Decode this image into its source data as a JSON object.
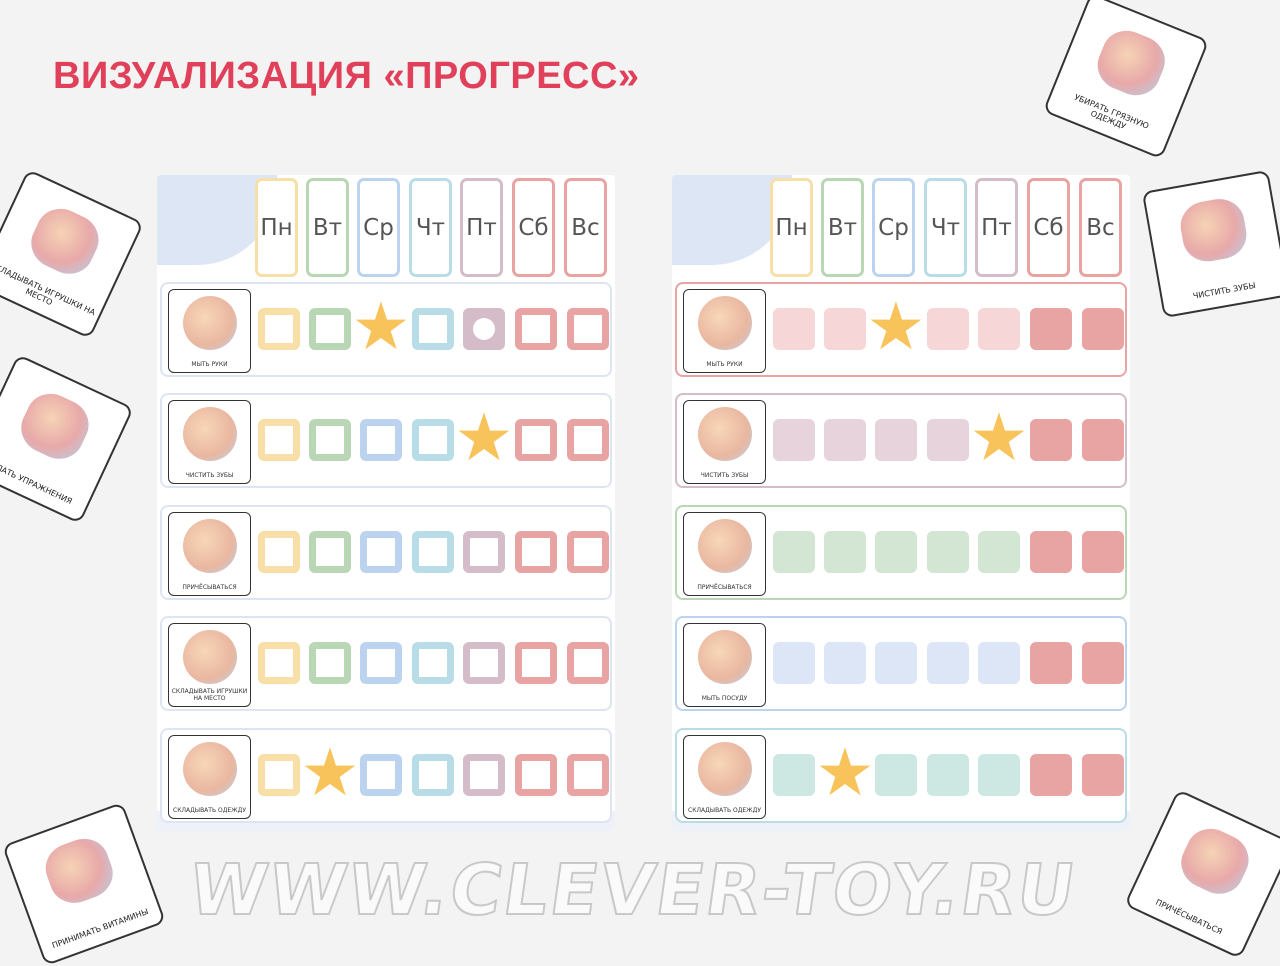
{
  "title": "ВИЗУАЛИЗАЦИЯ «ПРОГРЕСС»",
  "watermark": "WWW.CLEVER-TOY.RU",
  "days": [
    "Пн",
    "Вт",
    "Ср",
    "Чт",
    "Пт",
    "Сб",
    "Вс"
  ],
  "day_colors": [
    "#f8dfa8",
    "#b9d6b5",
    "#bcd3ef",
    "#b8dde6",
    "#d4bcc8",
    "#e8a3a3",
    "#e8a3a3"
  ],
  "boards": [
    {
      "style": "outline",
      "rows": [
        {
          "task": "МЫТЬ РУКИ",
          "marks": [
            "",
            "",
            "star",
            "",
            "circle",
            "",
            ""
          ]
        },
        {
          "task": "ЧИСТИТЬ ЗУБЫ",
          "marks": [
            "",
            "",
            "",
            "",
            "star",
            "",
            ""
          ]
        },
        {
          "task": "ПРИЧЁСЫВАТЬСЯ",
          "marks": [
            "",
            "",
            "",
            "",
            "",
            "",
            ""
          ]
        },
        {
          "task": "СКЛАДЫВАТЬ ИГРУШКИ НА МЕСТО",
          "marks": [
            "",
            "",
            "",
            "",
            "",
            "",
            ""
          ]
        },
        {
          "task": "СКЛАДЫВАТЬ ОДЕЖДУ",
          "marks": [
            "",
            "star",
            "",
            "",
            "",
            "",
            ""
          ]
        }
      ]
    },
    {
      "style": "filled",
      "rows": [
        {
          "task": "МЫТЬ РУКИ",
          "color": "#f6d6d6",
          "border": "#e8a3a3",
          "marks": [
            "",
            "",
            "star",
            "",
            "",
            "",
            ""
          ]
        },
        {
          "task": "ЧИСТИТЬ ЗУБЫ",
          "color": "#e6d3dc",
          "border": "#d4bcc8",
          "marks": [
            "",
            "",
            "",
            "",
            "star",
            "",
            ""
          ]
        },
        {
          "task": "ПРИЧЁСЫВАТЬСЯ",
          "color": "#d3e6d3",
          "border": "#b9d6b5",
          "marks": [
            "",
            "",
            "",
            "",
            "",
            "",
            ""
          ]
        },
        {
          "task": "МЫТЬ ПОСУДУ",
          "color": "#dde6f7",
          "border": "#bcd3ef",
          "marks": [
            "",
            "",
            "",
            "",
            "",
            "",
            ""
          ]
        },
        {
          "task": "СКЛАДЫВАТЬ ОДЕЖДУ",
          "color": "#cde8e2",
          "border": "#b8dde6",
          "marks": [
            "",
            "star",
            "",
            "",
            "",
            "",
            ""
          ]
        }
      ]
    }
  ],
  "weekend_color": "#e8a3a3",
  "cards": [
    "УБИРАТЬ ГРЯЗНУЮ ОДЕЖДУ",
    "ЧИСТИТЬ ЗУБЫ",
    "СКЛАДЫВАТЬ ИГРУШКИ НА МЕСТО",
    "ДЕЛАТЬ УПРАЖНЕНИЯ",
    "ПРИНИМАТЬ ВИТАМИНЫ",
    "ПРИЧЁСЫВАТЬСЯ"
  ]
}
